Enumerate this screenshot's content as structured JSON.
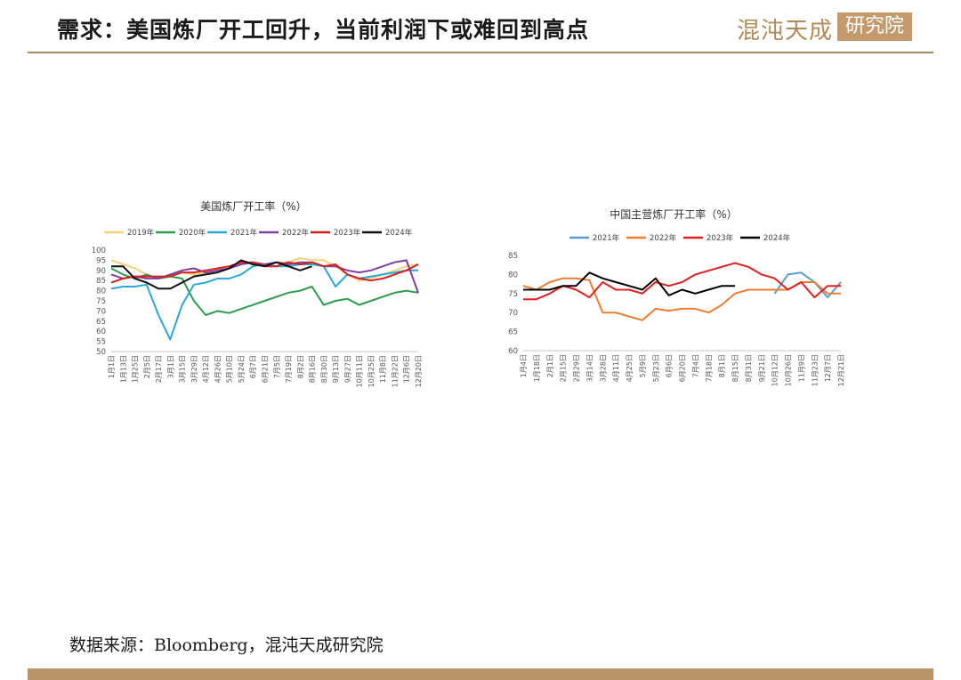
{
  "header": {
    "title": "需求：美国炼厂开工回升，当前利润下或难回到高点",
    "logo_text": "混沌天成",
    "logo_box_text": "研究院"
  },
  "footer": {
    "source": "数据来源：Bloomberg，混沌天成研究院"
  },
  "colors": {
    "accent": "#b08b5a",
    "footer_bar": "#b8956b"
  },
  "chart_data": [
    {
      "type": "line",
      "title": "美国炼厂开工率（%）",
      "x": [
        "1月1日",
        "1月13日",
        "1月25日",
        "2月5日",
        "2月17日",
        "3月1日",
        "3月15日",
        "3月29日",
        "4月12日",
        "4月26日",
        "5月10日",
        "5月24日",
        "6月7日",
        "6月21日",
        "7月5日",
        "7月19日",
        "8月2日",
        "8月16日",
        "8月30日",
        "9月13日",
        "9月27日",
        "10月11日",
        "10月25日",
        "11月8日",
        "11月22日",
        "12月6日",
        "12月20日"
      ],
      "ylim": [
        50,
        100
      ],
      "yticks": [
        50,
        55,
        60,
        65,
        70,
        75,
        80,
        85,
        90,
        95,
        100
      ],
      "legend_position": "top",
      "series": [
        {
          "name": "2019年",
          "color": "#f2d27a",
          "values": [
            95,
            93,
            91,
            88,
            86,
            87,
            89,
            88,
            89,
            90,
            91,
            93,
            94,
            93,
            94,
            94,
            96,
            95,
            95,
            92,
            88,
            85,
            86,
            88,
            90,
            92,
            93
          ]
        },
        {
          "name": "2020年",
          "color": "#2e9c4e",
          "values": [
            91,
            88,
            86,
            88,
            86,
            87,
            86,
            75,
            68,
            70,
            69,
            71,
            73,
            75,
            77,
            79,
            80,
            82,
            73,
            75,
            76,
            73,
            75,
            77,
            79,
            80,
            79
          ]
        },
        {
          "name": "2021年",
          "color": "#2aa8d8",
          "values": [
            81,
            82,
            82,
            83,
            68,
            56,
            73,
            83,
            84,
            86,
            86,
            88,
            92,
            93,
            92,
            92,
            93,
            93,
            92,
            82,
            88,
            86,
            87,
            88,
            89,
            90,
            90
          ]
        },
        {
          "name": "2022年",
          "color": "#7f3fa0",
          "values": [
            88,
            86,
            87,
            86,
            86,
            88,
            90,
            91,
            89,
            90,
            91,
            93,
            94,
            93,
            94,
            93,
            94,
            94,
            92,
            92,
            90,
            89,
            90,
            92,
            94,
            95,
            79
          ]
        },
        {
          "name": "2023年",
          "color": "#d42020",
          "values": [
            84,
            86,
            87,
            87,
            87,
            87,
            89,
            89,
            90,
            91,
            92,
            94,
            94,
            92,
            92,
            94,
            93,
            94,
            92,
            93,
            88,
            86,
            85,
            86,
            88,
            90,
            93
          ]
        },
        {
          "name": "2024年",
          "color": "#111111",
          "values": [
            92,
            92,
            86,
            84,
            81,
            81,
            84,
            87,
            88,
            89,
            91,
            95,
            93,
            92,
            94,
            92,
            90,
            92,
            null,
            null,
            null,
            null,
            null,
            null,
            null,
            null,
            null
          ]
        }
      ]
    },
    {
      "type": "line",
      "title": "中国主营炼厂开工率（%）",
      "x": [
        "1月4日",
        "1月18日",
        "2月1日",
        "2月15日",
        "2月29日",
        "3月14日",
        "3月28日",
        "4月11日",
        "4月25日",
        "5月9日",
        "5月23日",
        "6月6日",
        "6月20日",
        "7月4日",
        "7月18日",
        "8月1日",
        "8月15日",
        "8月31日",
        "9月21日",
        "10月12日",
        "10月26日",
        "11月9日",
        "11月23日",
        "12月7日",
        "12月21日"
      ],
      "ylim": [
        60,
        85
      ],
      "yticks": [
        60,
        65,
        70,
        75,
        80,
        85
      ],
      "legend_position": "top",
      "series": [
        {
          "name": "2021年",
          "color": "#5b9bd5",
          "values": [
            null,
            null,
            null,
            null,
            null,
            null,
            null,
            null,
            null,
            null,
            null,
            null,
            null,
            null,
            null,
            null,
            null,
            null,
            null,
            75,
            80,
            80.5,
            78,
            74,
            78
          ]
        },
        {
          "name": "2022年",
          "color": "#ed7d31",
          "values": [
            77,
            76,
            78,
            79,
            79,
            78.5,
            70,
            70,
            69,
            68,
            71,
            70.5,
            71,
            71,
            70,
            72,
            75,
            76,
            76,
            76,
            76,
            78,
            78,
            75,
            75
          ]
        },
        {
          "name": "2023年",
          "color": "#e02020",
          "values": [
            73.5,
            73.5,
            75,
            77,
            76,
            74,
            78,
            76,
            76,
            75,
            78,
            77,
            78,
            80,
            81,
            82,
            83,
            82,
            80,
            79,
            76,
            78,
            74,
            77,
            77
          ]
        },
        {
          "name": "2024年",
          "color": "#000000",
          "values": [
            76,
            76,
            76,
            77,
            77,
            80.5,
            79,
            78,
            77,
            76,
            79,
            74.5,
            76,
            75,
            76,
            77,
            77,
            null,
            null,
            null,
            null,
            null,
            null,
            null,
            null
          ]
        }
      ]
    }
  ]
}
